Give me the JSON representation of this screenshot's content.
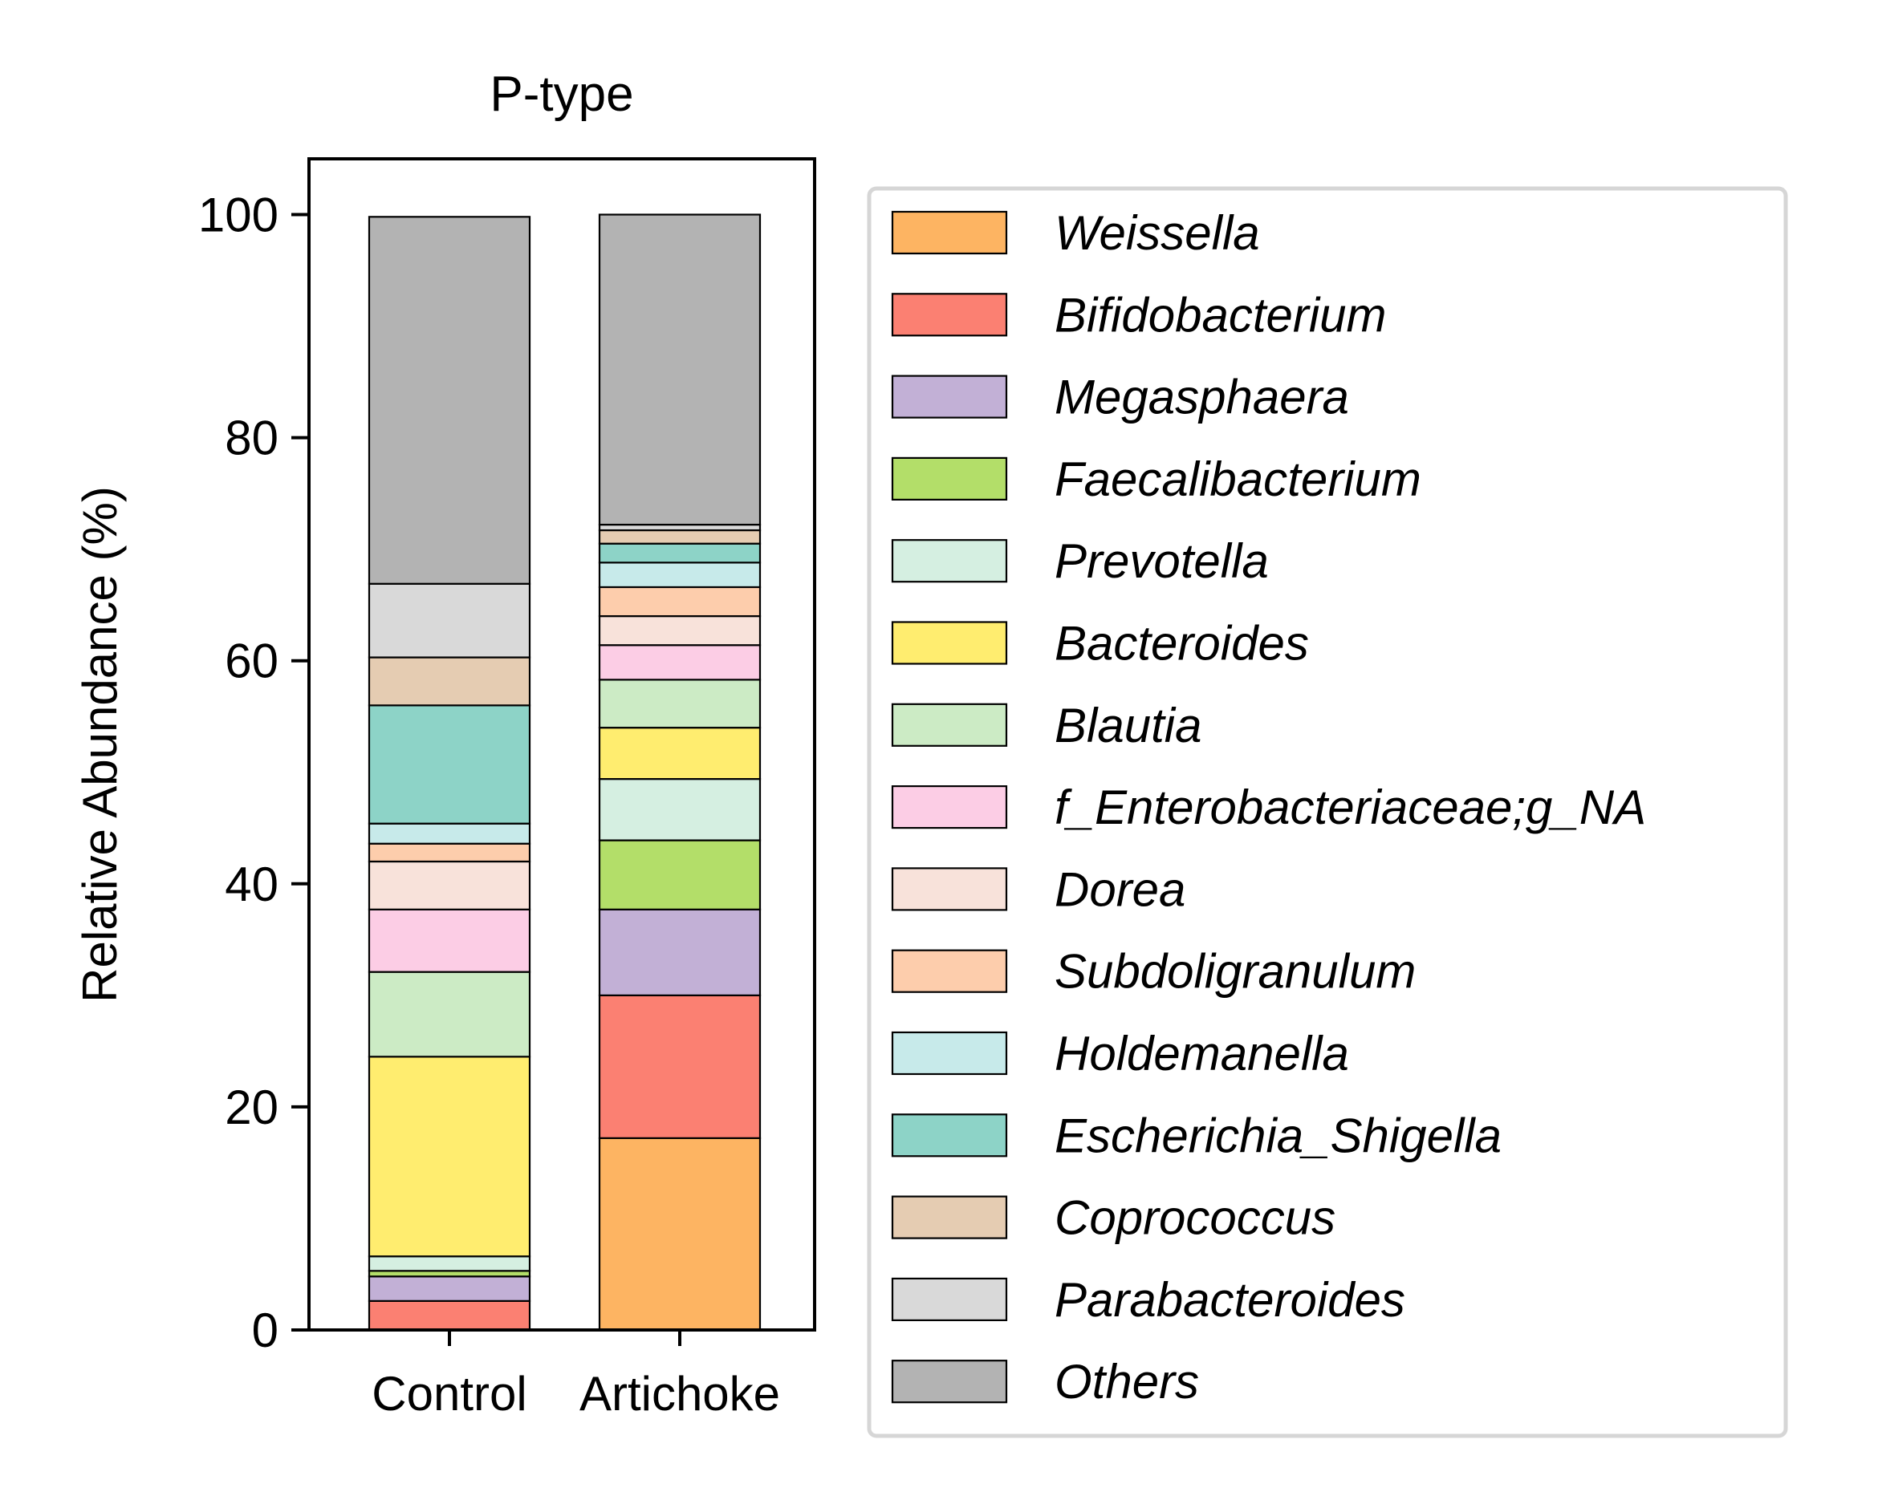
{
  "chart_data": {
    "type": "bar",
    "stacked": true,
    "title": "P-type",
    "xlabel": "",
    "ylabel": "Relative Abundance (%)",
    "ylim": [
      0,
      105
    ],
    "yticks": [
      "0",
      "20",
      "40",
      "60",
      "80",
      "100"
    ],
    "categories": [
      "Control",
      "Artichoke"
    ],
    "grid": false,
    "legend_position": "right",
    "series": [
      {
        "name": "Weissella",
        "color": "#fdb462",
        "values": [
          0.0,
          17.2
        ]
      },
      {
        "name": "Bifidobacterium",
        "color": "#fb8072",
        "values": [
          2.6,
          12.8
        ]
      },
      {
        "name": "Megasphaera",
        "color": "#c2b0d6",
        "values": [
          2.2,
          7.7
        ]
      },
      {
        "name": "Faecalibacterium",
        "color": "#b3de69",
        "values": [
          0.5,
          6.2
        ]
      },
      {
        "name": "Prevotella",
        "color": "#d5efe1",
        "values": [
          1.3,
          5.5
        ]
      },
      {
        "name": "Bacteroides",
        "color": "#ffed6f",
        "values": [
          17.9,
          4.6
        ]
      },
      {
        "name": "Blautia",
        "color": "#ccebc5",
        "values": [
          7.6,
          4.3
        ]
      },
      {
        "name": "f_Enterobacteriaceae;g_NA",
        "color": "#fccde5",
        "values": [
          5.6,
          3.1
        ]
      },
      {
        "name": "Dorea",
        "color": "#f8e2da",
        "values": [
          4.3,
          2.6
        ]
      },
      {
        "name": "Subdoligranulum",
        "color": "#fdcdac",
        "values": [
          1.6,
          2.6
        ]
      },
      {
        "name": "Holdemanella",
        "color": "#c7eaea",
        "values": [
          1.8,
          2.2
        ]
      },
      {
        "name": "Escherichia_Shigella",
        "color": "#8dd3c7",
        "values": [
          10.6,
          1.7
        ]
      },
      {
        "name": "Coprococcus",
        "color": "#e5ccb2",
        "values": [
          4.3,
          1.2
        ]
      },
      {
        "name": "Parabacteroides",
        "color": "#d9d9d9",
        "values": [
          6.6,
          0.5
        ]
      },
      {
        "name": "Others",
        "color": "#b3b3b3",
        "values": [
          32.9,
          27.8
        ]
      }
    ]
  }
}
